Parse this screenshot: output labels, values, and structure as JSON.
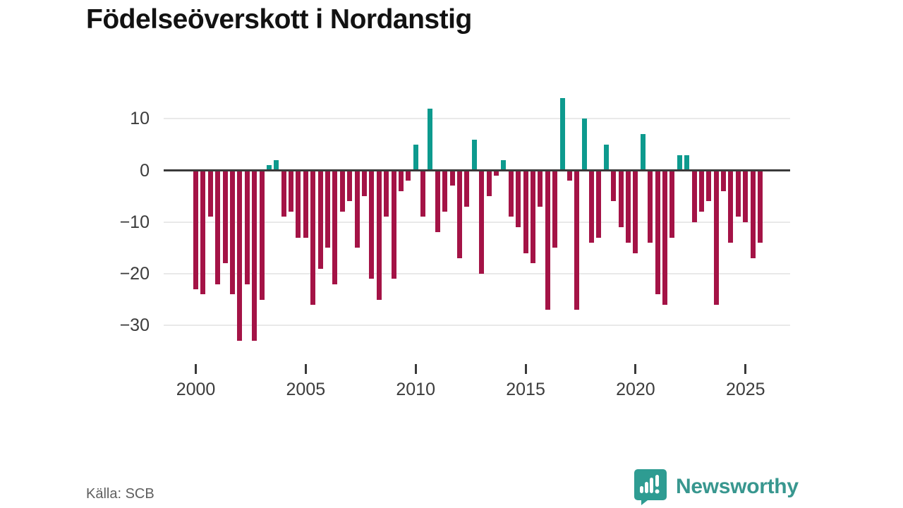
{
  "title": "Födelseöverskott i Nordanstig",
  "source": "Källa: SCB",
  "logo": {
    "brand": "Newsworthy",
    "badge_color": "#2e9c92",
    "text_color": "#38978f",
    "icon": "bar-chart-exclamation-icon"
  },
  "chart_data": {
    "type": "bar",
    "title": "Födelseöverskott i Nordanstig",
    "start_year": 2000,
    "periods_per_year": 3,
    "values": [
      -23,
      -24,
      -9,
      -22,
      -18,
      -24,
      -33,
      -22,
      -33,
      -25,
      1,
      2,
      -9,
      -8,
      -13,
      -13,
      -26,
      -19,
      -15,
      -22,
      -8,
      -6,
      -15,
      -5,
      -21,
      -25,
      -9,
      -21,
      -4,
      -2,
      5,
      -9,
      12,
      -12,
      -8,
      -3,
      -17,
      -7,
      6,
      -20,
      -5,
      -1,
      2,
      -9,
      -11,
      -16,
      -18,
      -7,
      -27,
      -15,
      14,
      -2,
      -27,
      10,
      -14,
      -13,
      5,
      -6,
      -11,
      -14,
      -16,
      7,
      -14,
      -24,
      -26,
      -13,
      3,
      3,
      -10,
      -8,
      -6,
      -26,
      -4,
      -14,
      -9,
      -10,
      -17,
      -14
    ],
    "y_ticks": [
      {
        "value": 10,
        "label": "10"
      },
      {
        "value": 0,
        "label": "0"
      },
      {
        "value": -10,
        "label": "−10"
      },
      {
        "value": -20,
        "label": "−20"
      },
      {
        "value": -30,
        "label": "−30"
      }
    ],
    "x_ticks": [
      {
        "value": 2000,
        "label": "2000"
      },
      {
        "value": 2005,
        "label": "2005"
      },
      {
        "value": 2010,
        "label": "2010"
      },
      {
        "value": 2015,
        "label": "2015"
      },
      {
        "value": 2020,
        "label": "2020"
      },
      {
        "value": 2025,
        "label": "2025"
      }
    ],
    "ylim": [
      -35,
      15
    ],
    "grid": true,
    "legend": "none",
    "positive_color": "#0d9a8e",
    "negative_color": "#a41346",
    "zero_line_color": "#3a3a3a",
    "gridline_color": "#e9e9e9"
  }
}
